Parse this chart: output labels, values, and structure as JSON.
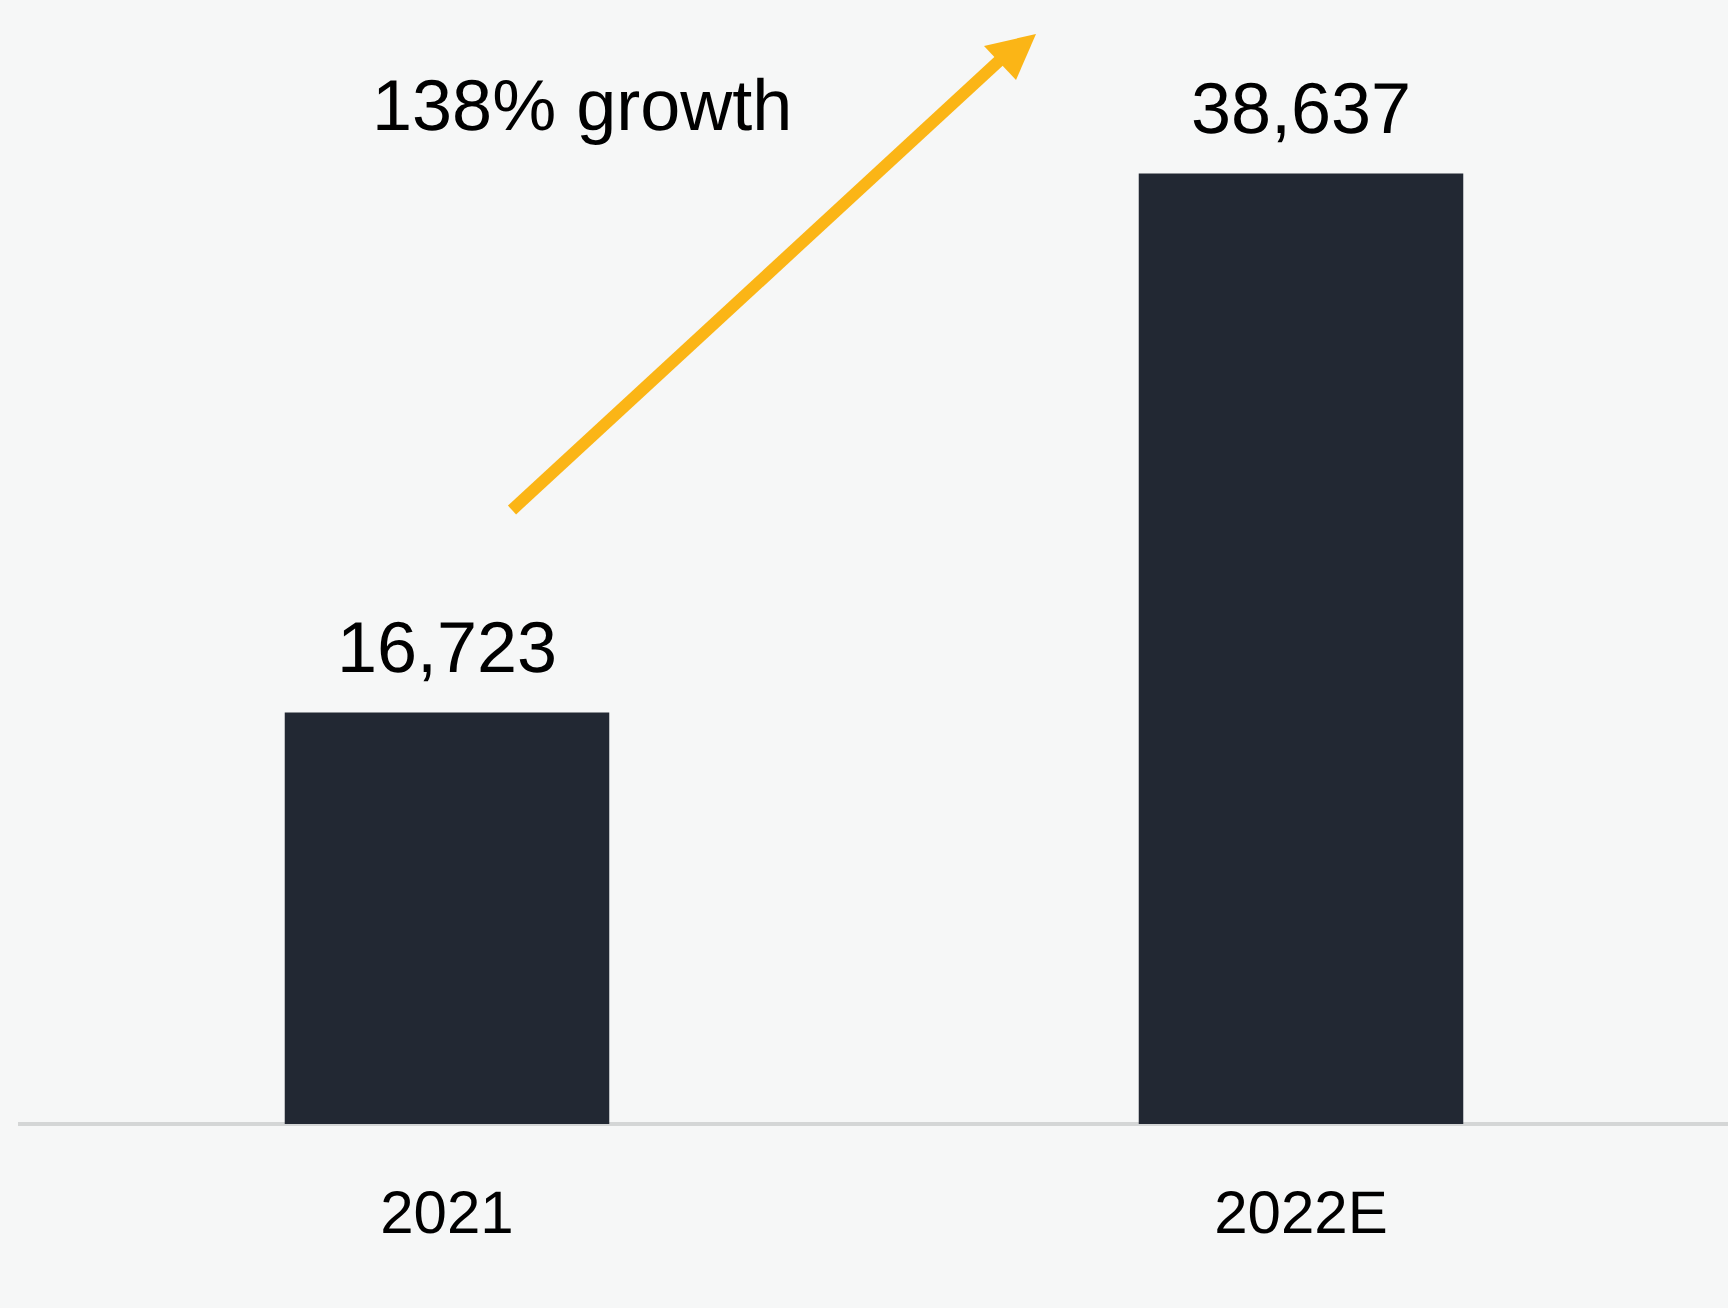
{
  "chart_data": {
    "type": "bar",
    "categories": [
      "2021",
      "2022E"
    ],
    "values": [
      16723,
      38637
    ],
    "color": "#222833",
    "value_labels": [
      "16,723",
      "38,637"
    ],
    "grid": false,
    "legend": false,
    "tick_labels": "x",
    "annotations": [
      "138% growth"
    ]
  }
}
